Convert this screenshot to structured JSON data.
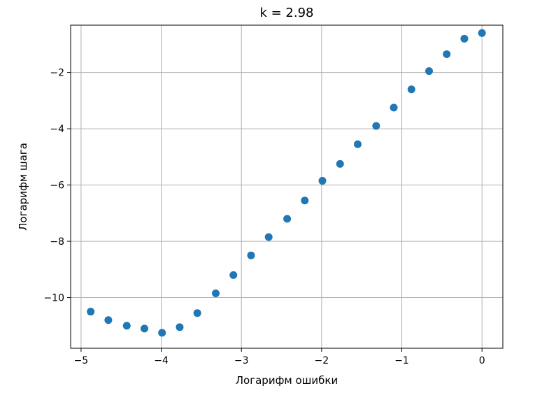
{
  "chart_data": {
    "type": "scatter",
    "title": "k = 2.98",
    "xlabel": "Логарифм ошибки",
    "ylabel": "Логарифм шага",
    "xlim": [
      -5.13,
      0.26
    ],
    "ylim": [
      -11.8,
      -0.32
    ],
    "xticks": [
      -5,
      -4,
      -3,
      -2,
      -1,
      0
    ],
    "xtick_labels": [
      "−5",
      "−4",
      "−3",
      "−2",
      "−1",
      "0"
    ],
    "yticks": [
      -10,
      -8,
      -6,
      -4,
      -2
    ],
    "ytick_labels": [
      "−10",
      "−8",
      "−6",
      "−4",
      "−2"
    ],
    "grid": true,
    "marker_color": "#1f77b4",
    "points": [
      {
        "x": -4.88,
        "y": -10.5
      },
      {
        "x": -4.66,
        "y": -10.8
      },
      {
        "x": -4.43,
        "y": -11.0
      },
      {
        "x": -4.21,
        "y": -11.1
      },
      {
        "x": -3.99,
        "y": -11.25
      },
      {
        "x": -3.77,
        "y": -11.05
      },
      {
        "x": -3.55,
        "y": -10.55
      },
      {
        "x": -3.32,
        "y": -9.85
      },
      {
        "x": -3.1,
        "y": -9.2
      },
      {
        "x": -2.88,
        "y": -8.5
      },
      {
        "x": -2.66,
        "y": -7.85
      },
      {
        "x": -2.43,
        "y": -7.2
      },
      {
        "x": -2.21,
        "y": -6.55
      },
      {
        "x": -1.99,
        "y": -5.85
      },
      {
        "x": -1.77,
        "y": -5.25
      },
      {
        "x": -1.55,
        "y": -4.55
      },
      {
        "x": -1.32,
        "y": -3.9
      },
      {
        "x": -1.1,
        "y": -3.25
      },
      {
        "x": -0.88,
        "y": -2.6
      },
      {
        "x": -0.66,
        "y": -1.95
      },
      {
        "x": -0.44,
        "y": -1.35
      },
      {
        "x": -0.22,
        "y": -0.8
      },
      {
        "x": 0.0,
        "y": -0.6
      }
    ]
  }
}
